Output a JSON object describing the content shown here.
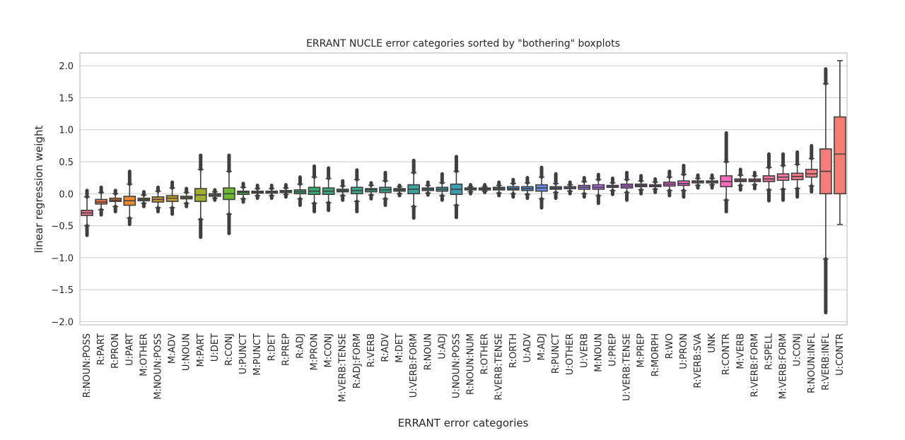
{
  "chart_data": {
    "type": "box",
    "title": "ERRANT NUCLE error categories sorted by \"bothering\" boxplots",
    "xlabel": "ERRANT error categories",
    "ylabel": "linear regression weight",
    "ylim": [
      -2.05,
      2.2
    ],
    "yticks": [
      2.0,
      1.5,
      1.0,
      0.5,
      0.0,
      -0.5,
      -1.0,
      -1.5,
      -2.0
    ],
    "ytick_labels": [
      "2.0",
      "1.5",
      "1.0",
      "0.5",
      "0.0",
      "−0.5",
      "−1.0",
      "−1.5",
      "−2.0"
    ],
    "grid": true,
    "categories": [
      "R:NOUN:POSS",
      "R:PART",
      "R:PRON",
      "U:PART",
      "M:OTHER",
      "M:NOUN:POSS",
      "M:ADV",
      "U:NOUN",
      "M:PART",
      "U:DET",
      "R:CONJ",
      "U:PUNCT",
      "M:PUNCT",
      "R:DET",
      "R:PREP",
      "R:ADJ",
      "M:PRON",
      "M:CONJ",
      "M:VERB:TENSE",
      "R:ADJ:FORM",
      "R:VERB",
      "R:ADV",
      "M:DET",
      "U:VERB:FORM",
      "R:NOUN",
      "U:ADJ",
      "U:NOUN:POSS",
      "R:NOUN:NUM",
      "R:OTHER",
      "R:VERB:TENSE",
      "R:ORTH",
      "U:ADV",
      "M:ADJ",
      "R:PUNCT",
      "U:OTHER",
      "U:VERB",
      "M:NOUN",
      "U:PREP",
      "U:VERB:TENSE",
      "M:PREP",
      "R:MORPH",
      "R:WO",
      "U:PRON",
      "R:VERB:SVA",
      "UNK",
      "R:CONTR",
      "M:VERB",
      "R:VERB:FORM",
      "R:SPELL",
      "M:VERB:FORM",
      "U:CONJ",
      "R:NOUN:INFL",
      "R:VERB:INFL",
      "U:CONTR"
    ],
    "colors": [
      "#f77189",
      "#f7754f",
      "#f57d32",
      "#e98b31",
      "#dd9431",
      "#d19b31",
      "#c3a131",
      "#b3a731",
      "#a1ac31",
      "#8cb131",
      "#6db731",
      "#4cb941",
      "#36b654",
      "#33b45e",
      "#34b266",
      "#35b06e",
      "#35ae75",
      "#36ad7b",
      "#36ab82",
      "#37aa88",
      "#37a88d",
      "#38a693",
      "#38a598",
      "#39a39f",
      "#3aa2a4",
      "#3aa0aa",
      "#3b9eb1",
      "#3c9cb8",
      "#3d9ac0",
      "#3e97c8",
      "#3f94d4",
      "#4f90e3",
      "#6a8ae9",
      "#8185ec",
      "#9580ee",
      "#a779f0",
      "#b771f2",
      "#c66af4",
      "#d562f4",
      "#e35af4",
      "#f057ed",
      "#f45ce2",
      "#f561d9",
      "#f565d0",
      "#f569c8",
      "#f56dbe",
      "#f671b3",
      "#f674a9",
      "#f6769f",
      "#f67896",
      "#f67a8c",
      "#f67c83",
      "#f67e7a",
      "#f58071"
    ],
    "stats": [
      {
        "q1": -0.34,
        "median": -0.3,
        "q3": -0.26,
        "whisker_low": -0.5,
        "whisker_high": -0.05,
        "flier_low": -0.65,
        "flier_high": 0.05
      },
      {
        "q1": -0.16,
        "median": -0.13,
        "q3": -0.09,
        "whisker_low": -0.25,
        "whisker_high": 0.02,
        "flier_low": -0.33,
        "flier_high": 0.1
      },
      {
        "q1": -0.12,
        "median": -0.1,
        "q3": -0.07,
        "whisker_low": -0.2,
        "whisker_high": 0.0,
        "flier_low": -0.28,
        "flier_high": 0.05
      },
      {
        "q1": -0.18,
        "median": -0.11,
        "q3": -0.04,
        "whisker_low": -0.38,
        "whisker_high": 0.15,
        "flier_low": -0.48,
        "flier_high": 0.35
      },
      {
        "q1": -0.11,
        "median": -0.09,
        "q3": -0.07,
        "whisker_low": -0.15,
        "whisker_high": -0.02,
        "flier_low": -0.2,
        "flier_high": 0.03
      },
      {
        "q1": -0.13,
        "median": -0.09,
        "q3": -0.05,
        "whisker_low": -0.22,
        "whisker_high": 0.04,
        "flier_low": -0.28,
        "flier_high": 0.1
      },
      {
        "q1": -0.12,
        "median": -0.07,
        "q3": -0.03,
        "whisker_low": -0.22,
        "whisker_high": 0.09,
        "flier_low": -0.32,
        "flier_high": 0.18
      },
      {
        "q1": -0.08,
        "median": -0.06,
        "q3": -0.04,
        "whisker_low": -0.15,
        "whisker_high": 0.02,
        "flier_low": -0.2,
        "flier_high": 0.08
      },
      {
        "q1": -0.12,
        "median": -0.02,
        "q3": 0.08,
        "whisker_low": -0.4,
        "whisker_high": 0.38,
        "flier_low": -0.68,
        "flier_high": 0.6
      },
      {
        "q1": -0.04,
        "median": -0.02,
        "q3": 0.0,
        "whisker_low": -0.07,
        "whisker_high": 0.03,
        "flier_low": -0.1,
        "flier_high": 0.06
      },
      {
        "q1": -0.09,
        "median": 0.0,
        "q3": 0.09,
        "whisker_low": -0.32,
        "whisker_high": 0.35,
        "flier_low": -0.62,
        "flier_high": 0.6
      },
      {
        "q1": -0.01,
        "median": 0.02,
        "q3": 0.04,
        "whisker_low": -0.08,
        "whisker_high": 0.1,
        "flier_low": -0.13,
        "flier_high": 0.16
      },
      {
        "q1": 0.01,
        "median": 0.02,
        "q3": 0.04,
        "whisker_low": -0.03,
        "whisker_high": 0.08,
        "flier_low": -0.07,
        "flier_high": 0.13
      },
      {
        "q1": 0.01,
        "median": 0.03,
        "q3": 0.04,
        "whisker_low": -0.03,
        "whisker_high": 0.08,
        "flier_low": -0.07,
        "flier_high": 0.13
      },
      {
        "q1": 0.02,
        "median": 0.03,
        "q3": 0.05,
        "whisker_low": -0.01,
        "whisker_high": 0.09,
        "flier_low": -0.05,
        "flier_high": 0.14
      },
      {
        "q1": 0.0,
        "median": 0.03,
        "q3": 0.06,
        "whisker_low": -0.08,
        "whisker_high": 0.15,
        "flier_low": -0.18,
        "flier_high": 0.26
      },
      {
        "q1": -0.01,
        "median": 0.04,
        "q3": 0.1,
        "whisker_low": -0.15,
        "whisker_high": 0.26,
        "flier_low": -0.28,
        "flier_high": 0.43
      },
      {
        "q1": -0.01,
        "median": 0.04,
        "q3": 0.09,
        "whisker_low": -0.14,
        "whisker_high": 0.24,
        "flier_low": -0.26,
        "flier_high": 0.4
      },
      {
        "q1": 0.03,
        "median": 0.05,
        "q3": 0.07,
        "whisker_low": -0.03,
        "whisker_high": 0.12,
        "flier_low": -0.1,
        "flier_high": 0.2
      },
      {
        "q1": 0.0,
        "median": 0.05,
        "q3": 0.1,
        "whisker_low": -0.12,
        "whisker_high": 0.22,
        "flier_low": -0.28,
        "flier_high": 0.37
      },
      {
        "q1": 0.03,
        "median": 0.06,
        "q3": 0.08,
        "whisker_low": -0.02,
        "whisker_high": 0.13,
        "flier_low": -0.08,
        "flier_high": 0.17
      },
      {
        "q1": 0.02,
        "median": 0.06,
        "q3": 0.1,
        "whisker_low": -0.08,
        "whisker_high": 0.2,
        "flier_low": -0.18,
        "flier_high": 0.33
      },
      {
        "q1": 0.04,
        "median": 0.06,
        "q3": 0.08,
        "whisker_low": 0.0,
        "whisker_high": 0.11,
        "flier_low": -0.03,
        "flier_high": 0.13
      },
      {
        "q1": 0.0,
        "median": 0.07,
        "q3": 0.14,
        "whisker_low": -0.2,
        "whisker_high": 0.33,
        "flier_low": -0.38,
        "flier_high": 0.52
      },
      {
        "q1": 0.05,
        "median": 0.07,
        "q3": 0.09,
        "whisker_low": 0.01,
        "whisker_high": 0.13,
        "flier_low": -0.02,
        "flier_high": 0.18
      },
      {
        "q1": 0.04,
        "median": 0.07,
        "q3": 0.1,
        "whisker_low": -0.03,
        "whisker_high": 0.17,
        "flier_low": -0.1,
        "flier_high": 0.31
      },
      {
        "q1": -0.01,
        "median": 0.07,
        "q3": 0.15,
        "whisker_low": -0.18,
        "whisker_high": 0.35,
        "flier_low": -0.37,
        "flier_high": 0.58
      },
      {
        "q1": 0.06,
        "median": 0.07,
        "q3": 0.09,
        "whisker_low": 0.03,
        "whisker_high": 0.11,
        "flier_low": 0.0,
        "flier_high": 0.14
      },
      {
        "q1": 0.06,
        "median": 0.08,
        "q3": 0.09,
        "whisker_low": 0.04,
        "whisker_high": 0.11,
        "flier_low": 0.02,
        "flier_high": 0.14
      },
      {
        "q1": 0.06,
        "median": 0.08,
        "q3": 0.1,
        "whisker_low": 0.01,
        "whisker_high": 0.13,
        "flier_low": -0.03,
        "flier_high": 0.18
      },
      {
        "q1": 0.06,
        "median": 0.08,
        "q3": 0.11,
        "whisker_low": 0.0,
        "whisker_high": 0.16,
        "flier_low": -0.05,
        "flier_high": 0.22
      },
      {
        "q1": 0.05,
        "median": 0.08,
        "q3": 0.11,
        "whisker_low": -0.01,
        "whisker_high": 0.17,
        "flier_low": -0.07,
        "flier_high": 0.25
      },
      {
        "q1": 0.04,
        "median": 0.09,
        "q3": 0.14,
        "whisker_low": -0.08,
        "whisker_high": 0.26,
        "flier_low": -0.22,
        "flier_high": 0.41
      },
      {
        "q1": 0.07,
        "median": 0.09,
        "q3": 0.11,
        "whisker_low": 0.02,
        "whisker_high": 0.16,
        "flier_low": -0.07,
        "flier_high": 0.31
      },
      {
        "q1": 0.08,
        "median": 0.09,
        "q3": 0.11,
        "whisker_low": 0.04,
        "whisker_high": 0.14,
        "flier_low": 0.0,
        "flier_high": 0.18
      },
      {
        "q1": 0.07,
        "median": 0.1,
        "q3": 0.13,
        "whisker_low": 0.0,
        "whisker_high": 0.19,
        "flier_low": -0.05,
        "flier_high": 0.25
      },
      {
        "q1": 0.07,
        "median": 0.1,
        "q3": 0.14,
        "whisker_low": -0.03,
        "whisker_high": 0.22,
        "flier_low": -0.15,
        "flier_high": 0.3
      },
      {
        "q1": 0.1,
        "median": 0.11,
        "q3": 0.13,
        "whisker_low": 0.05,
        "whisker_high": 0.17,
        "flier_low": -0.01,
        "flier_high": 0.24
      },
      {
        "q1": 0.09,
        "median": 0.12,
        "q3": 0.15,
        "whisker_low": 0.02,
        "whisker_high": 0.22,
        "flier_low": -0.1,
        "flier_high": 0.33
      },
      {
        "q1": 0.11,
        "median": 0.13,
        "q3": 0.15,
        "whisker_low": 0.06,
        "whisker_high": 0.2,
        "flier_low": 0.0,
        "flier_high": 0.28
      },
      {
        "q1": 0.11,
        "median": 0.13,
        "q3": 0.14,
        "whisker_low": 0.07,
        "whisker_high": 0.18,
        "flier_low": 0.02,
        "flier_high": 0.23
      },
      {
        "q1": 0.12,
        "median": 0.15,
        "q3": 0.18,
        "whisker_low": 0.05,
        "whisker_high": 0.26,
        "flier_low": -0.03,
        "flier_high": 0.35
      },
      {
        "q1": 0.13,
        "median": 0.16,
        "q3": 0.2,
        "whisker_low": 0.05,
        "whisker_high": 0.3,
        "flier_low": -0.05,
        "flier_high": 0.44
      },
      {
        "q1": 0.17,
        "median": 0.19,
        "q3": 0.2,
        "whisker_low": 0.13,
        "whisker_high": 0.24,
        "flier_low": 0.09,
        "flier_high": 0.29
      },
      {
        "q1": 0.17,
        "median": 0.19,
        "q3": 0.2,
        "whisker_low": 0.14,
        "whisker_high": 0.24,
        "flier_low": 0.09,
        "flier_high": 0.29
      },
      {
        "q1": 0.11,
        "median": 0.19,
        "q3": 0.28,
        "whisker_low": -0.1,
        "whisker_high": 0.5,
        "flier_low": -0.28,
        "flier_high": 0.95
      },
      {
        "q1": 0.19,
        "median": 0.21,
        "q3": 0.23,
        "whisker_low": 0.13,
        "whisker_high": 0.29,
        "flier_low": 0.06,
        "flier_high": 0.38
      },
      {
        "q1": 0.19,
        "median": 0.21,
        "q3": 0.23,
        "whisker_low": 0.14,
        "whisker_high": 0.28,
        "flier_low": 0.08,
        "flier_high": 0.33
      },
      {
        "q1": 0.19,
        "median": 0.23,
        "q3": 0.28,
        "whisker_low": 0.06,
        "whisker_high": 0.41,
        "flier_low": -0.11,
        "flier_high": 0.62
      },
      {
        "q1": 0.21,
        "median": 0.26,
        "q3": 0.31,
        "whisker_low": 0.07,
        "whisker_high": 0.44,
        "flier_low": -0.1,
        "flier_high": 0.62
      },
      {
        "q1": 0.22,
        "median": 0.27,
        "q3": 0.32,
        "whisker_low": 0.08,
        "whisker_high": 0.46,
        "flier_low": -0.05,
        "flier_high": 0.65
      },
      {
        "q1": 0.26,
        "median": 0.31,
        "q3": 0.38,
        "whisker_low": 0.12,
        "whisker_high": 0.55,
        "flier_low": 0.03,
        "flier_high": 0.75
      },
      {
        "q1": 0.0,
        "median": 0.35,
        "q3": 0.7,
        "whisker_low": -1.02,
        "whisker_high": 1.72,
        "flier_low": -1.86,
        "flier_high": 1.95
      },
      {
        "q1": 0.0,
        "median": 0.62,
        "q3": 1.2,
        "whisker_low": -0.48,
        "whisker_high": 2.08,
        "flier_low": null,
        "flier_high": null
      }
    ]
  }
}
